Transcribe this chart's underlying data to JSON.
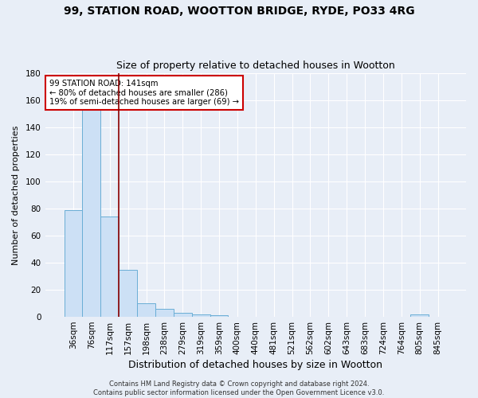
{
  "title1": "99, STATION ROAD, WOOTTON BRIDGE, RYDE, PO33 4RG",
  "title2": "Size of property relative to detached houses in Wootton",
  "xlabel": "Distribution of detached houses by size in Wootton",
  "ylabel": "Number of detached properties",
  "footer": "Contains HM Land Registry data © Crown copyright and database right 2024.\nContains public sector information licensed under the Open Government Licence v3.0.",
  "categories": [
    "36sqm",
    "76sqm",
    "117sqm",
    "157sqm",
    "198sqm",
    "238sqm",
    "279sqm",
    "319sqm",
    "359sqm",
    "400sqm",
    "440sqm",
    "481sqm",
    "521sqm",
    "562sqm",
    "602sqm",
    "643sqm",
    "683sqm",
    "724sqm",
    "764sqm",
    "805sqm",
    "845sqm"
  ],
  "values": [
    79,
    157,
    74,
    35,
    10,
    6,
    3,
    2,
    1,
    0,
    0,
    0,
    0,
    0,
    0,
    0,
    0,
    0,
    0,
    2,
    0
  ],
  "bar_color": "#cce0f5",
  "bar_edge_color": "#6aaed6",
  "vline_color": "#8b0000",
  "vline_position": 2.5,
  "annotation_text": "99 STATION ROAD: 141sqm\n← 80% of detached houses are smaller (286)\n19% of semi-detached houses are larger (69) →",
  "annotation_box_facecolor": "#ffffff",
  "annotation_box_edgecolor": "#cc0000",
  "ylim": [
    0,
    180
  ],
  "yticks": [
    0,
    20,
    40,
    60,
    80,
    100,
    120,
    140,
    160,
    180
  ],
  "bg_color": "#e8eef7",
  "plot_bg_color": "#e8eef7",
  "grid_color": "#ffffff",
  "title1_fontsize": 10,
  "title2_fontsize": 9,
  "xlabel_fontsize": 9,
  "ylabel_fontsize": 8,
  "tick_fontsize": 7.5,
  "footer_fontsize": 6
}
